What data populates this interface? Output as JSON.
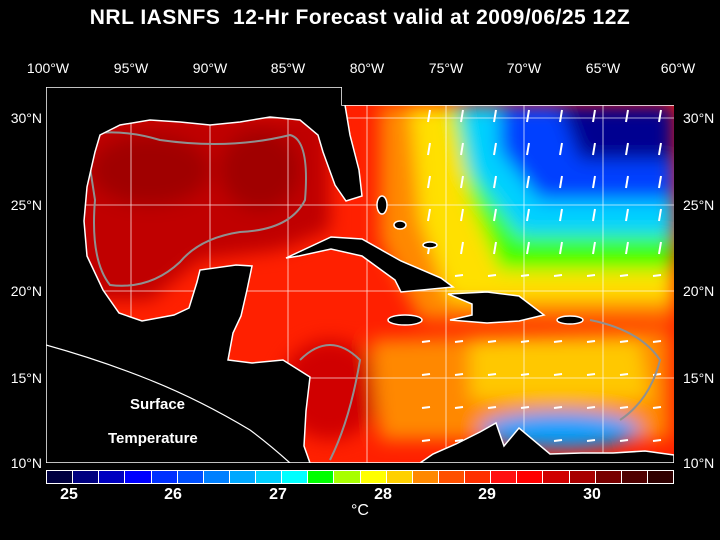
{
  "title": "NRL IASNFS  12-Hr Forecast valid at 2009/06/25 12Z",
  "lon_ticks": [
    "100°W",
    "95°W",
    "90°W",
    "85°W",
    "80°W",
    "75°W",
    "70°W",
    "65°W",
    "60°W"
  ],
  "lat_ticks": [
    "30°N",
    "25°N",
    "20°N",
    "15°N",
    "10°N"
  ],
  "map_labels": {
    "line1": "Surface",
    "line2": "Temperature"
  },
  "colorbar": {
    "unit": "°C",
    "labels": [
      "25",
      "26",
      "27",
      "28",
      "29",
      "30"
    ],
    "colors": [
      "#000040",
      "#000080",
      "#0000c0",
      "#0000ff",
      "#0030ff",
      "#0050ff",
      "#0080ff",
      "#00a8ff",
      "#00d0ff",
      "#00ffff",
      "#00ff00",
      "#a8ff00",
      "#ffff00",
      "#ffd000",
      "#ff8800",
      "#ff5000",
      "#ff3000",
      "#ff1010",
      "#ff0000",
      "#d00000",
      "#a80000",
      "#780000",
      "#500000",
      "#300000"
    ]
  }
}
